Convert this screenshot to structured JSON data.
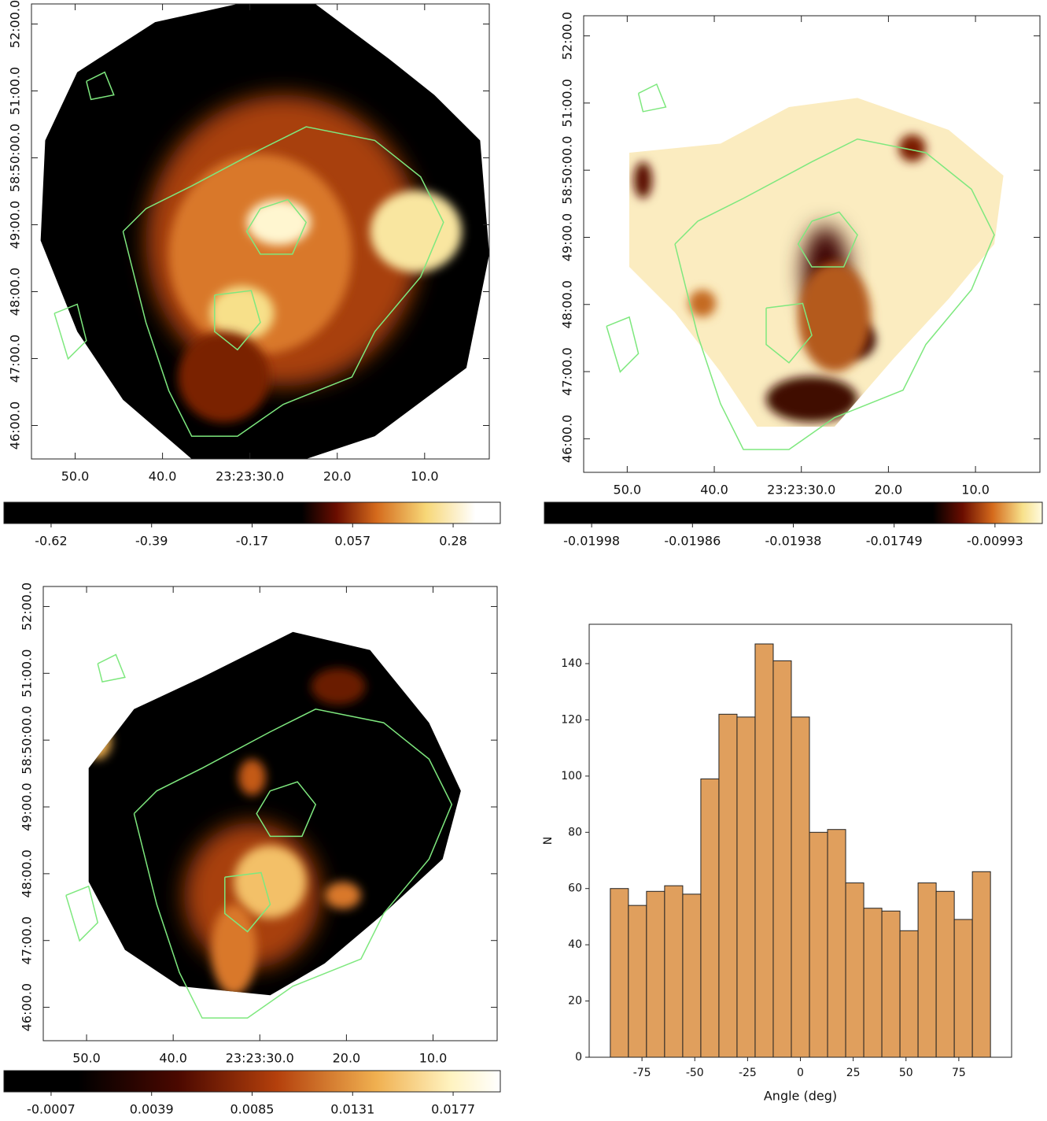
{
  "chart_data": [
    {
      "type": "map",
      "xlim": [
        55,
        2.6
      ],
      "ylim": [
        45.5,
        52.3
      ],
      "xticks": [
        {
          "value": 50,
          "label": "50.0"
        },
        {
          "value": 40,
          "label": "40.0"
        },
        {
          "value": 30,
          "label": "23:23:30.0"
        },
        {
          "value": 20,
          "label": "20.0"
        },
        {
          "value": 10,
          "label": "10.0"
        }
      ],
      "yticks": [
        {
          "value": 46,
          "label": "46:00.0"
        },
        {
          "value": 47,
          "label": "47:00.0"
        },
        {
          "value": 48,
          "label": "48:00.0"
        },
        {
          "value": 49,
          "label": "49:00.0"
        },
        {
          "value": 50,
          "label": "58:50:00.0"
        },
        {
          "value": 51,
          "label": "51:00.0"
        },
        {
          "value": 52,
          "label": "52:00.0"
        }
      ],
      "colorbar_ticks": [
        -0.62,
        -0.39,
        -0.17,
        0.057,
        0.28
      ]
    },
    {
      "type": "map",
      "xlim": [
        55,
        2.6
      ],
      "ylim": [
        45.5,
        52.3
      ],
      "xticks": [
        {
          "value": 50,
          "label": "50.0"
        },
        {
          "value": 40,
          "label": "40.0"
        },
        {
          "value": 30,
          "label": "23:23:30.0"
        },
        {
          "value": 20,
          "label": "20.0"
        },
        {
          "value": 10,
          "label": "10.0"
        }
      ],
      "yticks": [
        {
          "value": 46,
          "label": "46:00.0"
        },
        {
          "value": 47,
          "label": "47:00.0"
        },
        {
          "value": 48,
          "label": "48:00.0"
        },
        {
          "value": 49,
          "label": "49:00.0"
        },
        {
          "value": 50,
          "label": "58:50:00.0"
        },
        {
          "value": 51,
          "label": "51:00.0"
        },
        {
          "value": 52,
          "label": "52:00.0"
        }
      ],
      "colorbar_ticks": [
        -0.01998,
        -0.01986,
        -0.01938,
        -0.01749,
        -0.00993
      ]
    },
    {
      "type": "map",
      "xlim": [
        55,
        2.6
      ],
      "ylim": [
        45.5,
        52.3
      ],
      "xticks": [
        {
          "value": 50,
          "label": "50.0"
        },
        {
          "value": 40,
          "label": "40.0"
        },
        {
          "value": 30,
          "label": "23:23:30.0"
        },
        {
          "value": 20,
          "label": "20.0"
        },
        {
          "value": 10,
          "label": "10.0"
        }
      ],
      "yticks": [
        {
          "value": 46,
          "label": "46:00.0"
        },
        {
          "value": 47,
          "label": "47:00.0"
        },
        {
          "value": 48,
          "label": "48:00.0"
        },
        {
          "value": 49,
          "label": "49:00.0"
        },
        {
          "value": 50,
          "label": "58:50:00.0"
        },
        {
          "value": 51,
          "label": "51:00.0"
        },
        {
          "value": 52,
          "label": "52:00.0"
        }
      ],
      "colorbar_ticks": [
        -0.0007,
        0.0039,
        0.0085,
        0.0131,
        0.0177
      ]
    },
    {
      "type": "histogram",
      "x_label": "Angle (deg)",
      "y_label": "N",
      "color": "#e09f5d",
      "bins": [
        -90,
        -81.43,
        -72.86,
        -64.29,
        -55.71,
        -47.14,
        -38.57,
        -30,
        -21.43,
        -12.86,
        -4.29,
        4.29,
        12.86,
        21.43,
        30,
        38.57,
        47.14,
        55.71,
        64.29,
        72.86,
        81.43,
        90
      ],
      "values": [
        60,
        54,
        59,
        61,
        58,
        99,
        122,
        121,
        147,
        141,
        121,
        80,
        81,
        62,
        53,
        52,
        45,
        62,
        59,
        49,
        66
      ],
      "xlim": [
        -100,
        100
      ],
      "ylim": [
        0,
        154
      ],
      "xticks": [
        -75,
        -50,
        -25,
        0,
        25,
        50,
        75
      ],
      "yticks": [
        0,
        20,
        40,
        60,
        80,
        100,
        120,
        140
      ]
    }
  ]
}
